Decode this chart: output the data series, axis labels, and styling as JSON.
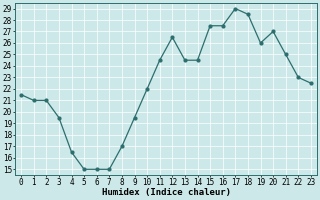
{
  "x": [
    0,
    1,
    2,
    3,
    4,
    5,
    6,
    7,
    8,
    9,
    10,
    11,
    12,
    13,
    14,
    15,
    16,
    17,
    18,
    19,
    20,
    21,
    22,
    23
  ],
  "y": [
    21.5,
    21.0,
    21.0,
    19.5,
    16.5,
    15.0,
    15.0,
    15.0,
    17.0,
    19.5,
    22.0,
    24.5,
    26.5,
    24.5,
    24.5,
    27.5,
    27.5,
    29.0,
    28.5,
    26.0,
    27.0,
    25.0,
    23.0,
    22.5
  ],
  "line_color": "#2d6e6e",
  "marker": "o",
  "markersize": 2.0,
  "linewidth": 0.9,
  "bg_color": "#cce8e8",
  "grid_color": "#ffffff",
  "xlabel": "Humidex (Indice chaleur)",
  "xlabel_fontsize": 6.5,
  "tick_fontsize": 5.5,
  "yticks": [
    15,
    16,
    17,
    18,
    19,
    20,
    21,
    22,
    23,
    24,
    25,
    26,
    27,
    28,
    29
  ],
  "xticks": [
    0,
    1,
    2,
    3,
    4,
    5,
    6,
    7,
    8,
    9,
    10,
    11,
    12,
    13,
    14,
    15,
    16,
    17,
    18,
    19,
    20,
    21,
    22,
    23
  ],
  "xlim": [
    -0.5,
    23.5
  ],
  "ylim_min": 14.5,
  "ylim_max": 29.5
}
